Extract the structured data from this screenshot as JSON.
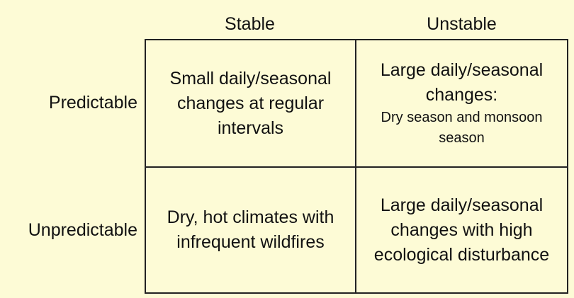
{
  "columns": {
    "stable": "Stable",
    "unstable": "Unstable"
  },
  "rows": {
    "predictable": "Predictable",
    "unpredictable": "Unpredictable"
  },
  "cells": {
    "predictable_stable": "Small daily/seasonal changes at regular intervals",
    "predictable_unstable": {
      "main": "Large daily/seasonal changes:",
      "sub": "Dry season and monsoon season"
    },
    "unpredictable_stable": "Dry, hot climates with infrequent wildfires",
    "unpredictable_unstable": "Large daily/seasonal changes with high ecological disturbance"
  }
}
